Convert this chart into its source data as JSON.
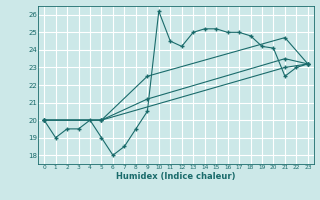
{
  "xlabel": "Humidex (Indice chaleur)",
  "bg_color": "#cce8e8",
  "grid_color": "#b0d4d4",
  "line_color": "#1a6b6b",
  "xlim": [
    -0.5,
    23.5
  ],
  "ylim": [
    17.5,
    26.5
  ],
  "xticks": [
    0,
    1,
    2,
    3,
    4,
    5,
    6,
    7,
    8,
    9,
    10,
    11,
    12,
    13,
    14,
    15,
    16,
    17,
    18,
    19,
    20,
    21,
    22,
    23
  ],
  "yticks": [
    18,
    19,
    20,
    21,
    22,
    23,
    24,
    25,
    26
  ],
  "line1_x": [
    0,
    1,
    2,
    3,
    4,
    5,
    6,
    7,
    8,
    9,
    10,
    11,
    12,
    13,
    14,
    15,
    16,
    17,
    18,
    19,
    20,
    21,
    22,
    23
  ],
  "line1_y": [
    20.0,
    19.0,
    19.5,
    19.5,
    20.0,
    19.0,
    18.0,
    18.5,
    19.5,
    20.5,
    26.2,
    24.5,
    24.2,
    25.0,
    25.2,
    25.2,
    25.0,
    25.0,
    24.8,
    24.2,
    24.1,
    22.5,
    23.0,
    23.2
  ],
  "line2_x": [
    0,
    5,
    9,
    21,
    23
  ],
  "line2_y": [
    20.0,
    20.0,
    22.5,
    24.7,
    23.2
  ],
  "line3_x": [
    0,
    5,
    9,
    21,
    23
  ],
  "line3_y": [
    20.0,
    20.0,
    21.2,
    23.5,
    23.2
  ],
  "line4_x": [
    0,
    5,
    21,
    23
  ],
  "line4_y": [
    20.0,
    20.0,
    23.0,
    23.2
  ]
}
